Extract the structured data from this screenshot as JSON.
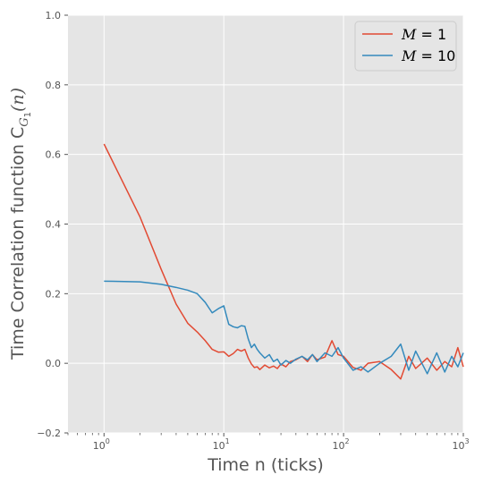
{
  "chart_data": {
    "type": "line",
    "title": "",
    "xlabel": "Time n (ticks)",
    "ylabel_parts": {
      "main": "Time Correlation function C",
      "sub": "G",
      "subsub": "1",
      "tail": "(n)"
    },
    "xscale": "log",
    "xlim": [
      0.5,
      1000
    ],
    "ylim": [
      -0.2,
      1.0
    ],
    "x_major_ticks": [
      {
        "value": 1,
        "base": "10",
        "exp": "0"
      },
      {
        "value": 10,
        "base": "10",
        "exp": "1"
      },
      {
        "value": 100,
        "base": "10",
        "exp": "2"
      },
      {
        "value": 1000,
        "base": "10",
        "exp": "3"
      }
    ],
    "y_ticks": [
      {
        "value": -0.2,
        "label": "−0.2"
      },
      {
        "value": 0.0,
        "label": "0.0"
      },
      {
        "value": 0.2,
        "label": "0.2"
      },
      {
        "value": 0.4,
        "label": "0.4"
      },
      {
        "value": 0.6,
        "label": "0.6"
      },
      {
        "value": 0.8,
        "label": "0.8"
      },
      {
        "value": 1.0,
        "label": "1.0"
      }
    ],
    "grid": true,
    "legend_position": "top-right",
    "colors": {
      "background": "#e5e5e5",
      "grid": "#ffffff",
      "text": "#555555"
    },
    "series": [
      {
        "name": "M = 1",
        "name_var": "M",
        "name_val": "1",
        "color": "#e24a33",
        "x": [
          1,
          2,
          3,
          4,
          5,
          6,
          7,
          8,
          9,
          10,
          11,
          12,
          13,
          14,
          15,
          16,
          17,
          18,
          19,
          20,
          22,
          24,
          26,
          28,
          30,
          33,
          36,
          40,
          45,
          50,
          55,
          60,
          70,
          80,
          90,
          100,
          120,
          140,
          160,
          200,
          250,
          300,
          350,
          400,
          500,
          600,
          700,
          800,
          900,
          1000
        ],
        "values": [
          0.63,
          0.42,
          0.27,
          0.17,
          0.115,
          0.09,
          0.065,
          0.04,
          0.032,
          0.033,
          0.02,
          0.028,
          0.04,
          0.035,
          0.04,
          0.015,
          -0.002,
          -0.012,
          -0.01,
          -0.018,
          -0.005,
          -0.013,
          -0.008,
          -0.015,
          -0.002,
          -0.01,
          0.005,
          0.01,
          0.02,
          0.005,
          0.025,
          0.01,
          0.018,
          0.065,
          0.025,
          0.02,
          -0.012,
          -0.02,
          0.0,
          0.005,
          -0.018,
          -0.045,
          0.02,
          -0.015,
          0.015,
          -0.02,
          0.005,
          -0.01,
          0.045,
          -0.01
        ]
      },
      {
        "name": "M = 10",
        "name_var": "M",
        "name_val": "10",
        "color": "#348abd",
        "x": [
          1,
          2,
          3,
          4,
          5,
          6,
          7,
          8,
          9,
          10,
          11,
          12,
          13,
          14,
          15,
          16,
          17,
          18,
          19,
          20,
          22,
          24,
          26,
          28,
          30,
          33,
          36,
          40,
          45,
          50,
          55,
          60,
          70,
          80,
          90,
          100,
          120,
          140,
          160,
          200,
          250,
          300,
          350,
          400,
          500,
          600,
          700,
          800,
          900,
          1000
        ],
        "values": [
          0.236,
          0.234,
          0.227,
          0.218,
          0.21,
          0.2,
          0.175,
          0.145,
          0.157,
          0.165,
          0.112,
          0.105,
          0.102,
          0.108,
          0.106,
          0.07,
          0.045,
          0.055,
          0.04,
          0.03,
          0.015,
          0.025,
          0.005,
          0.012,
          -0.005,
          0.008,
          0.0,
          0.012,
          0.02,
          0.01,
          0.025,
          0.005,
          0.03,
          0.02,
          0.045,
          0.015,
          -0.02,
          -0.01,
          -0.025,
          0.0,
          0.02,
          0.055,
          -0.02,
          0.035,
          -0.03,
          0.03,
          -0.025,
          0.02,
          -0.01,
          0.03
        ]
      }
    ]
  }
}
